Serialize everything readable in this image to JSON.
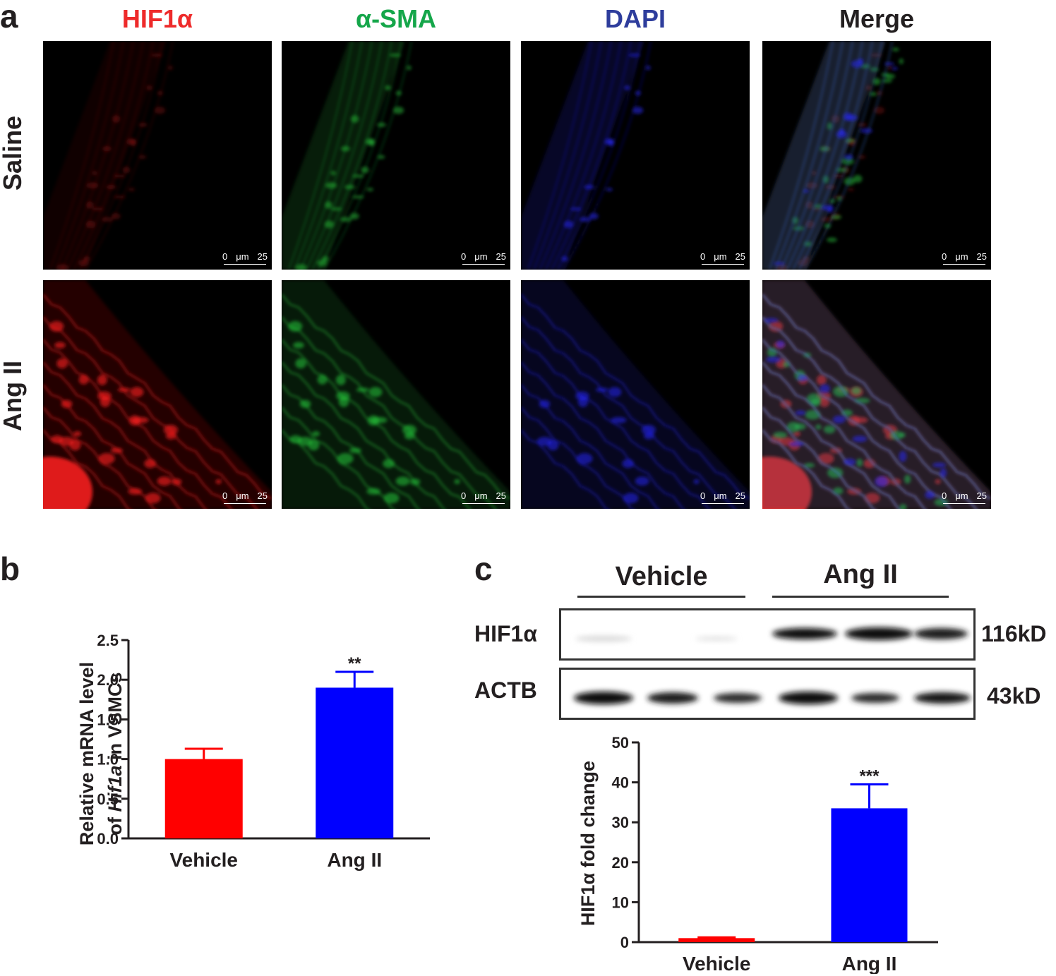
{
  "panel_a": {
    "letter": "a",
    "channels": [
      {
        "label": "HIF1α",
        "color": "#ee2a2a"
      },
      {
        "label": "α-SMA",
        "color": "#15a64a"
      },
      {
        "label": "DAPI",
        "color": "#2e3d9c"
      },
      {
        "label": "Merge",
        "color": "#231f20"
      }
    ],
    "rows": [
      "Saline",
      "Ang II"
    ],
    "scale_bar": {
      "start": "0",
      "unit": "μm",
      "end": "25"
    }
  },
  "panel_b": {
    "letter": "b",
    "chart_data": {
      "type": "bar",
      "categories": [
        "Vehicle",
        "Ang II"
      ],
      "values": [
        1.0,
        1.9
      ],
      "errors": [
        0.13,
        0.2
      ],
      "colors": [
        "#ff0000",
        "#0000ff"
      ],
      "significance": [
        "",
        "**"
      ],
      "ylabel_line1": "Relative mRNA level",
      "ylabel_line2_pre": "of ",
      "ylabel_line2_italic": "Hif1a",
      "ylabel_line2_post": " in VSMCs",
      "ylim": [
        0,
        2.5
      ],
      "yticks": [
        "0.0",
        "0.5",
        "1.0",
        "1.5",
        "2.0",
        "2.5"
      ]
    }
  },
  "panel_c": {
    "letter": "c",
    "groups": [
      "Vehicle",
      "Ang II"
    ],
    "blots": [
      {
        "label": "HIF1α",
        "size": "116kD"
      },
      {
        "label": "ACTB",
        "size": "43kD"
      }
    ],
    "chart_data": {
      "type": "bar",
      "categories": [
        "Vehicle",
        "Ang II"
      ],
      "values": [
        1.0,
        33.5
      ],
      "errors": [
        0.2,
        6.0
      ],
      "colors": [
        "#ff0000",
        "#0000ff"
      ],
      "significance": [
        "",
        "***"
      ],
      "ylabel": "HIF1α fold change",
      "ylim": [
        0,
        50
      ],
      "yticks": [
        "0",
        "10",
        "20",
        "30",
        "40",
        "50"
      ]
    }
  }
}
